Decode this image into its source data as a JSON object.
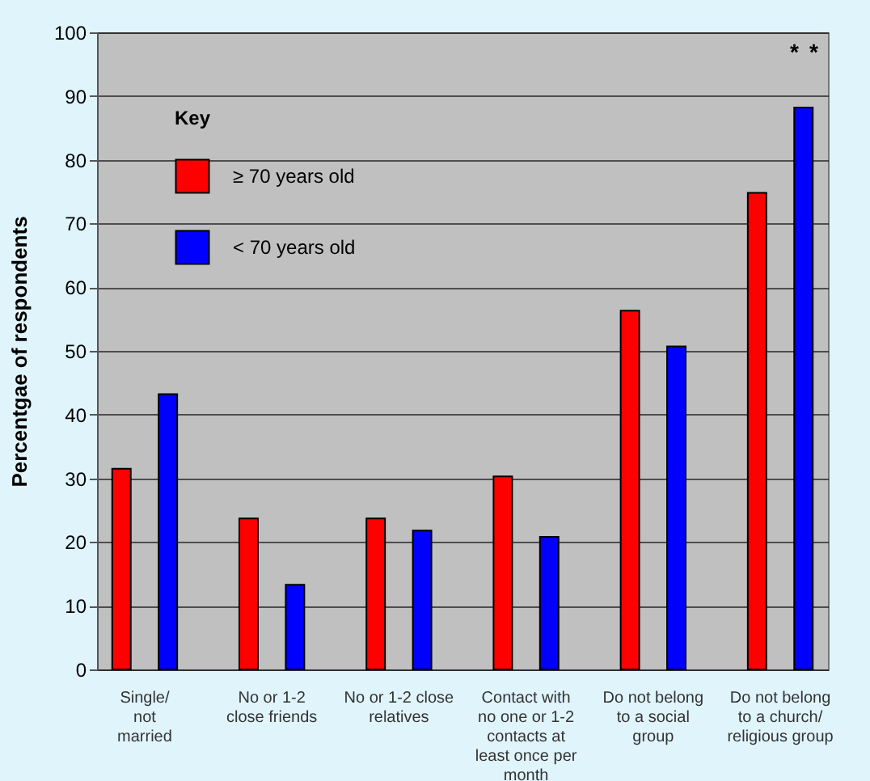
{
  "chart_data": {
    "type": "bar",
    "ylabel": "Percentgae of respondents",
    "legend_title": "Key",
    "categories": [
      "Single/\nnot\nmarried",
      "No or 1-2\nclose friends",
      "No or 1-2 close\nrelatives",
      "Contact with\nno one or 1-2\ncontacts at\nleast once per\nmonth",
      "Do not belong\nto a social\ngroup",
      "Do not belong\nto a church/\nreligious group"
    ],
    "series": [
      {
        "name": "≥ 70 years old",
        "color": "#ff0000",
        "values": [
          31.5,
          23.7,
          23.7,
          30.3,
          56.3,
          74.8
        ]
      },
      {
        "name": "< 70 years old",
        "color": "#0000ff",
        "values": [
          43.2,
          13.3,
          21.8,
          20.8,
          50.7,
          88.2
        ]
      }
    ],
    "annotations": [
      "*",
      "*"
    ],
    "ylim": [
      0,
      100
    ],
    "yticks": [
      0,
      10,
      20,
      30,
      40,
      50,
      60,
      70,
      80,
      90,
      100
    ],
    "grid": "y",
    "legend": "top left"
  }
}
